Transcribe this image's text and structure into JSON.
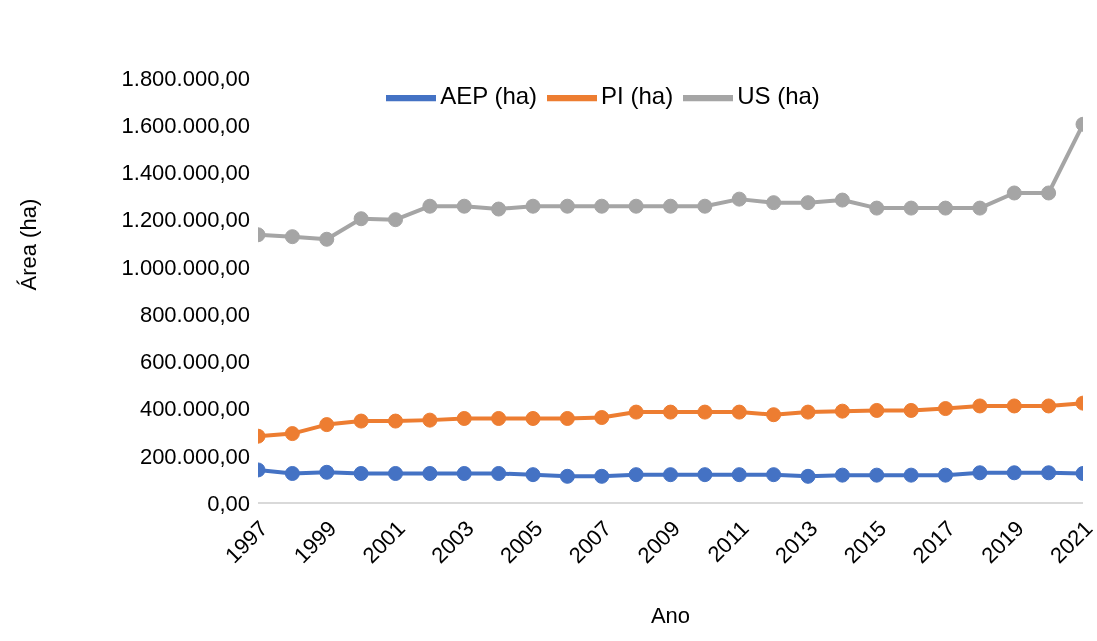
{
  "chart_data": {
    "type": "line",
    "xlabel": "Ano",
    "ylabel": "Área (ha)",
    "categories": [
      "1997",
      null,
      "1999",
      null,
      "2001",
      null,
      "2003",
      null,
      "2005",
      null,
      "2007",
      null,
      "2009",
      null,
      "2011",
      null,
      "2013",
      null,
      "2015",
      null,
      "2017",
      null,
      "2019",
      null,
      "2021"
    ],
    "series": [
      {
        "name": "AEP (ha)",
        "color": "#4472c4",
        "values": [
          140000,
          125000,
          130000,
          125000,
          125000,
          125000,
          125000,
          125000,
          120000,
          113000,
          113000,
          120000,
          120000,
          120000,
          120000,
          120000,
          113000,
          118000,
          118000,
          118000,
          118000,
          128000,
          128000,
          128000,
          125000
        ]
      },
      {
        "name": "PI (ha)",
        "color": "#ed7d31",
        "values": [
          283000,
          294000,
          332000,
          347000,
          347000,
          351000,
          358000,
          358000,
          358000,
          358000,
          362000,
          385000,
          385000,
          385000,
          385000,
          374000,
          385000,
          389000,
          392000,
          392000,
          400000,
          411000,
          411000,
          411000,
          423000
        ]
      },
      {
        "name": "US (ha)",
        "color": "#a5a5a5",
        "values": [
          1136000,
          1128000,
          1117000,
          1204000,
          1200000,
          1257000,
          1257000,
          1245000,
          1257000,
          1257000,
          1257000,
          1257000,
          1257000,
          1257000,
          1287000,
          1272000,
          1272000,
          1283000,
          1249000,
          1249000,
          1249000,
          1249000,
          1313000,
          1313000,
          1604000
        ]
      }
    ],
    "ylim": [
      0,
      1800000
    ],
    "yticks": [
      {
        "value": 0,
        "label": "0,00"
      },
      {
        "value": 200000,
        "label": "200.000,00"
      },
      {
        "value": 400000,
        "label": "400.000,00"
      },
      {
        "value": 600000,
        "label": "600.000,00"
      },
      {
        "value": 800000,
        "label": "800.000,00"
      },
      {
        "value": 1000000,
        "label": "1.000.000,00"
      },
      {
        "value": 1200000,
        "label": "1.200.000,00"
      },
      {
        "value": 1400000,
        "label": "1.400.000,00"
      },
      {
        "value": 1600000,
        "label": "1.600.000,00"
      },
      {
        "value": 1800000,
        "label": "1.800.000,00"
      }
    ],
    "grid": false,
    "legend": "top",
    "marker": "circle",
    "line_style": "solid"
  }
}
